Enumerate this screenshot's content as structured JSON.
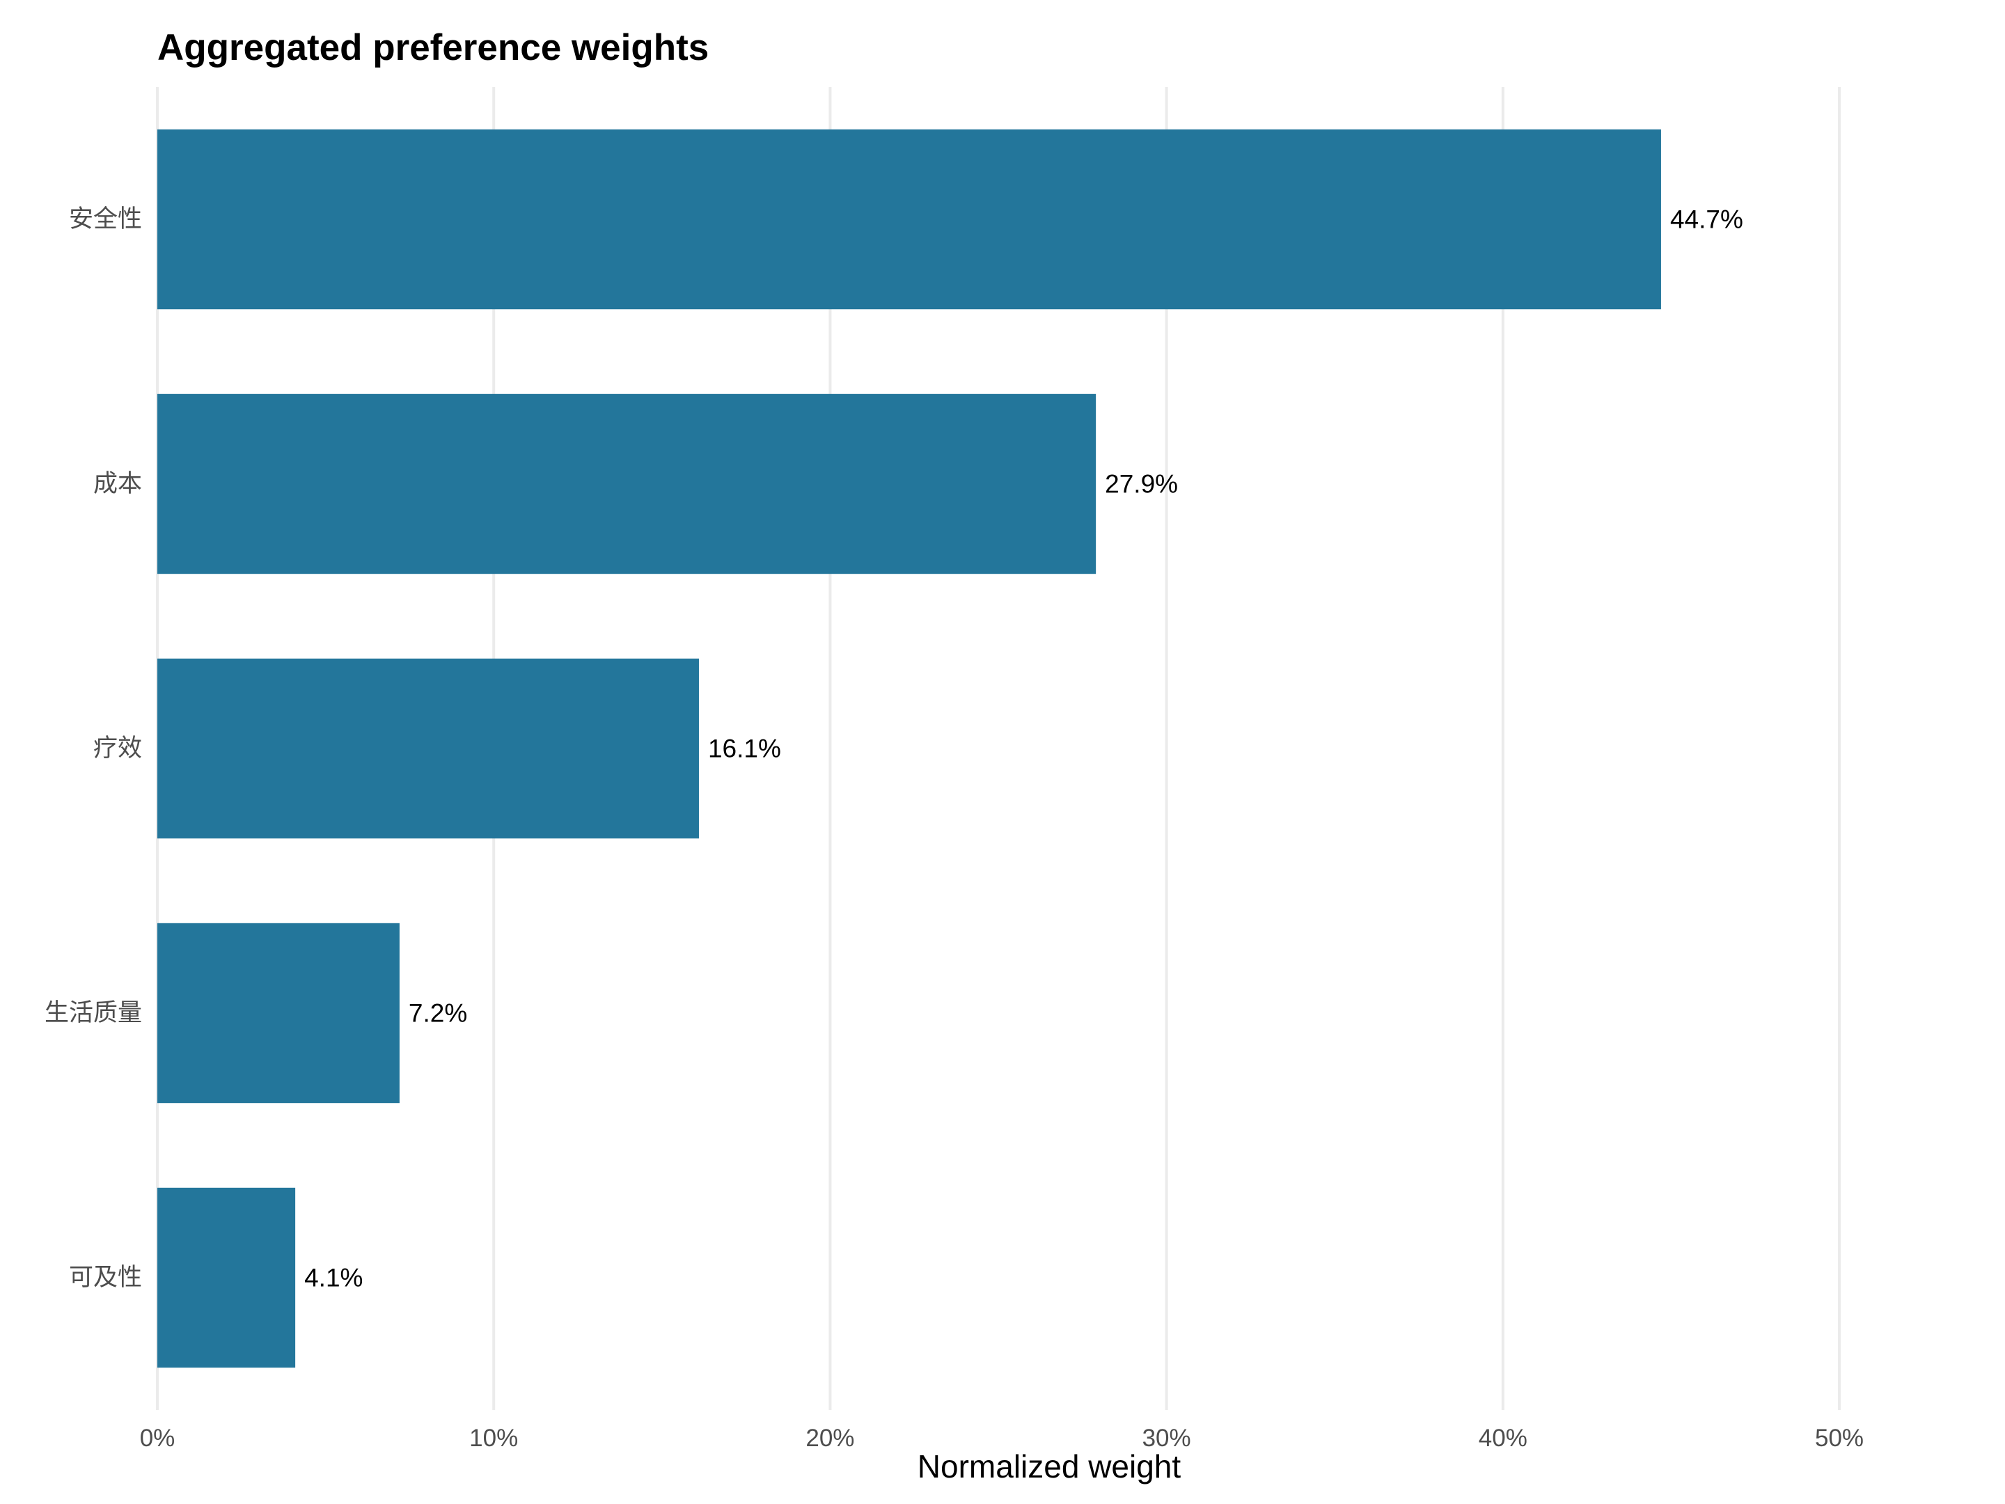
{
  "chart_data": {
    "type": "bar",
    "orientation": "horizontal",
    "title": "Aggregated preference weights",
    "xlabel": "Normalized weight",
    "ylabel": "",
    "categories": [
      "安全性",
      "成本",
      "疗效",
      "生活质量",
      "可及性"
    ],
    "values": [
      44.7,
      27.9,
      16.1,
      7.2,
      4.1
    ],
    "value_labels": [
      "44.7%",
      "27.9%",
      "16.1%",
      "7.2%",
      "4.1%"
    ],
    "xlim": [
      0,
      53
    ],
    "x_ticks": [
      0,
      10,
      20,
      30,
      40,
      50
    ],
    "x_tick_labels": [
      "0%",
      "10%",
      "20%",
      "30%",
      "40%",
      "50%"
    ],
    "grid": "vertical major",
    "legend": "none",
    "bar_color": "#23769b"
  }
}
